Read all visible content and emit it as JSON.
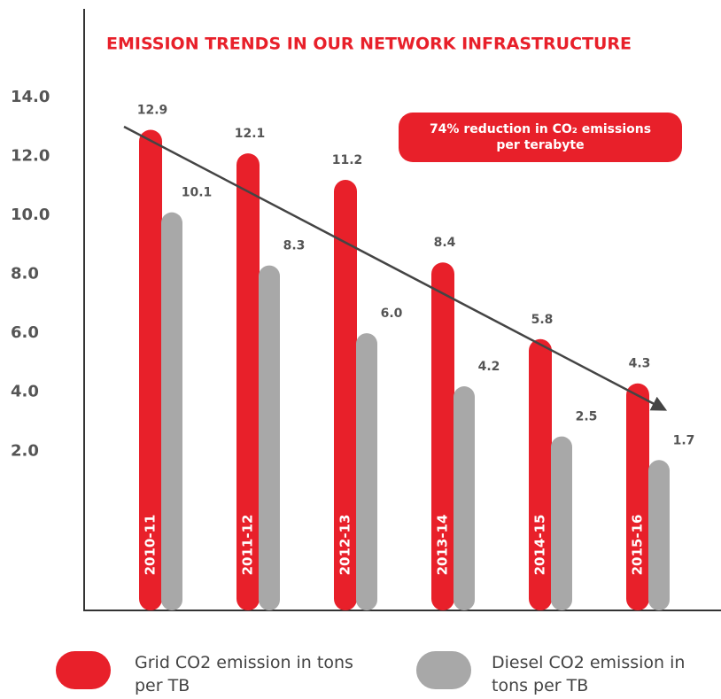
{
  "chart_data": {
    "type": "bar",
    "title": "EMISSION TRENDS IN OUR NETWORK INFRASTRUCTURE",
    "annotation": [
      "74% reduction in CO₂ emissions",
      "per terabyte"
    ],
    "categories": [
      "2010-11",
      "2011-12",
      "2012-13",
      "2013-14",
      "2014-15",
      "2015-16"
    ],
    "series": [
      {
        "name": "Grid CO2 emission in tons per TB",
        "color": "#e8202a",
        "values": [
          12.9,
          12.1,
          11.2,
          8.4,
          5.8,
          4.3
        ],
        "value_labels": [
          "12.9",
          "12.1",
          "11.2",
          "8.4",
          "5.8",
          "4.3"
        ]
      },
      {
        "name": "Diesel CO2 emission in tons per TB",
        "color": "#a8a8a8",
        "values": [
          10.1,
          8.3,
          6.0,
          4.2,
          2.5,
          1.7
        ],
        "value_labels": [
          "10.1",
          "8.3",
          "6.0",
          "4.2",
          "2.5",
          "1.7"
        ]
      }
    ],
    "ylim": [
      -3.4,
      17
    ],
    "yticks": [
      {
        "value": 2,
        "label": "2.0"
      },
      {
        "value": 4,
        "label": "4.0"
      },
      {
        "value": 6,
        "label": "6.0"
      },
      {
        "value": 8,
        "label": "8.0"
      },
      {
        "value": 10,
        "label": "10.0"
      },
      {
        "value": 12,
        "label": "12.0"
      },
      {
        "value": 14,
        "label": "14.0"
      }
    ],
    "grid": false
  }
}
